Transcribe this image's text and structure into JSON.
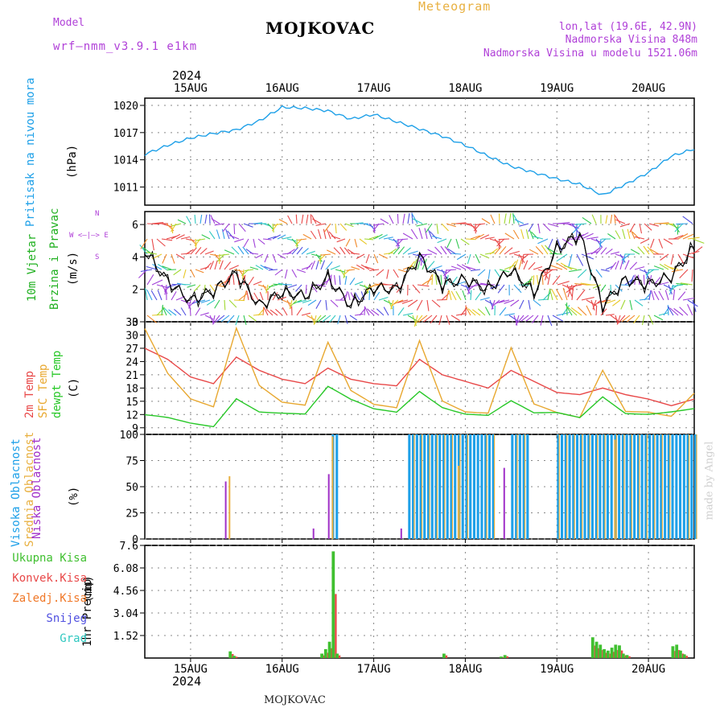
{
  "header": {
    "model_label": "Model",
    "model_name": "wrf—nmm_v3.9.1  e1km",
    "title": "MOJKOVAC",
    "subtitle": "Meteogram",
    "coords": "lon,lat (19.6E, 42.9N)",
    "altitude": "Nadmorska Visina 848m",
    "model_altitude": "Nadmorska Visina u modelu 1521.06m",
    "footer": "MOJKOVAC",
    "watermark": "made by Angel"
  },
  "colors": {
    "pressure": "#1ea0e8",
    "temp2m": "#e84848",
    "sfc": "#e8a830",
    "dewpt": "#28c828",
    "wind_label": "#20b020",
    "cloud_high": "#1ea0e8",
    "cloud_mid": "#e8b040",
    "cloud_low": "#a030c8",
    "precip_total": "#40c030",
    "precip_conv": "#e84848",
    "precip_frozen": "#f07828",
    "precip_snow": "#5050e0",
    "precip_grad": "#30c8c0",
    "model_text": "#b040d8"
  },
  "time_axis": {
    "year": "2024",
    "day_labels": [
      "15AUG",
      "16AUG",
      "17AUG",
      "18AUG",
      "19AUG",
      "20AUG"
    ],
    "start": "2024-08-14T12:00",
    "end": "2024-08-20T12:00"
  },
  "panels": {
    "pressure": {
      "label": "Pritisak na nivou mora",
      "unit": "(hPa)"
    },
    "wind": {
      "label1": "10m Vjetar",
      "label2": "Brzina i Pravac",
      "unit": "(m/s)",
      "compass": "W <—|—> E",
      "compass_n": "N",
      "compass_s": "S"
    },
    "temp": {
      "label1": "2m Temp",
      "label2": "SFC Temp",
      "label3": "dewpt Temp",
      "unit": "(C)"
    },
    "cloud": {
      "label1": "Visoka Oblacnost",
      "label2": "Srednja Oblacnost",
      "label3": "Niska Oblacnost",
      "unit": "(%)"
    },
    "precip": {
      "label": "1hr Precip",
      "unit": "(mm)",
      "legend": [
        "Ukupna Kisa",
        "Konvek.Kisa",
        "Zaledj.Kisa",
        "Snijeg",
        "Grad"
      ]
    }
  },
  "chart_data": [
    {
      "type": "line",
      "name": "pressure",
      "ylim": [
        1009.0,
        1020.8
      ],
      "yticks": [
        1011,
        1014,
        1017,
        1020
      ],
      "ylabel": "Pritisak na nivou mora (hPa)",
      "x": [
        "2024-08-14T12:00",
        "2024-08-14T18:00",
        "2024-08-15T00:00",
        "2024-08-15T06:00",
        "2024-08-15T12:00",
        "2024-08-15T18:00",
        "2024-08-16T00:00",
        "2024-08-16T06:00",
        "2024-08-16T12:00",
        "2024-08-16T18:00",
        "2024-08-17T00:00",
        "2024-08-17T06:00",
        "2024-08-17T12:00",
        "2024-08-17T18:00",
        "2024-08-18T00:00",
        "2024-08-18T06:00",
        "2024-08-18T12:00",
        "2024-08-18T18:00",
        "2024-08-19T00:00",
        "2024-08-19T06:00",
        "2024-08-19T12:00",
        "2024-08-19T18:00",
        "2024-08-20T00:00",
        "2024-08-20T06:00",
        "2024-08-20T12:00"
      ],
      "series": [
        {
          "values": [
            1014.6,
            1015.6,
            1016.4,
            1016.9,
            1017.3,
            1018.3,
            1019.8,
            1019.7,
            1019.4,
            1018.5,
            1019.0,
            1018.2,
            1017.4,
            1016.6,
            1015.6,
            1014.4,
            1013.3,
            1012.6,
            1011.9,
            1011.3,
            1010.1,
            1011.3,
            1012.6,
            1014.4,
            1015.2
          ]
        }
      ]
    },
    {
      "type": "line",
      "name": "wind",
      "ylim": [
        0,
        6.8
      ],
      "yticks": [
        0,
        2,
        4,
        6
      ],
      "ylabel": "10m Vjetar Brzina i Pravac (m/s)",
      "x": [
        "2024-08-14T12:00",
        "2024-08-14T18:00",
        "2024-08-15T00:00",
        "2024-08-15T06:00",
        "2024-08-15T12:00",
        "2024-08-15T18:00",
        "2024-08-16T00:00",
        "2024-08-16T06:00",
        "2024-08-16T12:00",
        "2024-08-16T18:00",
        "2024-08-17T00:00",
        "2024-08-17T06:00",
        "2024-08-17T12:00",
        "2024-08-17T18:00",
        "2024-08-18T00:00",
        "2024-08-18T06:00",
        "2024-08-18T12:00",
        "2024-08-18T18:00",
        "2024-08-19T00:00",
        "2024-08-19T06:00",
        "2024-08-19T12:00",
        "2024-08-19T18:00",
        "2024-08-20T00:00",
        "2024-08-20T06:00",
        "2024-08-20T12:00"
      ],
      "series": [
        {
          "values": [
            4.4,
            2.5,
            1.3,
            1.9,
            3.0,
            1.0,
            1.8,
            1.6,
            2.7,
            1.0,
            2.1,
            2.0,
            4.0,
            2.3,
            2.6,
            2.0,
            3.2,
            1.8,
            4.5,
            5.4,
            1.0,
            2.6,
            2.3,
            2.8,
            4.6
          ]
        }
      ]
    },
    {
      "type": "line",
      "name": "temperature",
      "ylim": [
        7.5,
        33
      ],
      "yticks": [
        9,
        12,
        15,
        18,
        21,
        24,
        27,
        30,
        33
      ],
      "ylabel": "(C)",
      "x": [
        "2024-08-14T12:00",
        "2024-08-14T18:00",
        "2024-08-15T00:00",
        "2024-08-15T06:00",
        "2024-08-15T12:00",
        "2024-08-15T18:00",
        "2024-08-16T00:00",
        "2024-08-16T06:00",
        "2024-08-16T12:00",
        "2024-08-16T18:00",
        "2024-08-17T00:00",
        "2024-08-17T06:00",
        "2024-08-17T12:00",
        "2024-08-17T18:00",
        "2024-08-18T00:00",
        "2024-08-18T06:00",
        "2024-08-18T12:00",
        "2024-08-18T18:00",
        "2024-08-19T00:00",
        "2024-08-19T06:00",
        "2024-08-19T12:00",
        "2024-08-19T18:00",
        "2024-08-20T00:00",
        "2024-08-20T06:00",
        "2024-08-20T12:00"
      ],
      "series": [
        {
          "name": "2m Temp",
          "values": [
            27.0,
            24.5,
            20.5,
            19.0,
            25.0,
            22.0,
            20.0,
            19.0,
            22.5,
            20.0,
            19.0,
            18.5,
            24.5,
            21.0,
            19.5,
            18.0,
            22.0,
            19.5,
            17.0,
            16.5,
            18.0,
            16.5,
            15.5,
            14.0,
            15.5
          ]
        },
        {
          "name": "SFC Temp",
          "values": [
            31.0,
            21.0,
            15.5,
            14.0,
            32.0,
            19.0,
            15.0,
            14.0,
            28.0,
            17.0,
            14.0,
            13.5,
            29.0,
            15.5,
            13.0,
            12.5,
            27.0,
            14.0,
            12.0,
            11.0,
            22.0,
            13.0,
            13.0,
            12.0,
            17.0
          ]
        },
        {
          "name": "dewpt Temp",
          "values": [
            11.5,
            11.0,
            10.0,
            9.5,
            16.0,
            13.0,
            12.5,
            12.0,
            18.0,
            15.0,
            13.0,
            12.5,
            17.5,
            14.0,
            12.5,
            12.0,
            15.0,
            12.0,
            12.0,
            11.0,
            16.0,
            12.5,
            12.5,
            13.0,
            13.5
          ]
        }
      ]
    },
    {
      "type": "bar",
      "name": "cloud_cover",
      "ylim": [
        0,
        100
      ],
      "yticks": [
        0,
        25,
        50,
        75,
        100
      ],
      "ylabel": "(%)",
      "periods_high_100": [
        [
          "2024-08-16T13:00",
          "2024-08-16T14:00"
        ],
        [
          "2024-08-17T09:00",
          "2024-08-18T07:00"
        ],
        [
          "2024-08-18T12:00",
          "2024-08-18T16:00"
        ],
        [
          "2024-08-19T00:00",
          "2024-08-20T12:00"
        ]
      ],
      "series": [
        {
          "name": "Niska Oblacnost",
          "spikes": [
            [
              "2024-08-15T09:00",
              55
            ],
            [
              "2024-08-16T08:00",
              10
            ],
            [
              "2024-08-16T12:00",
              62
            ],
            [
              "2024-08-17T07:00",
              10
            ],
            [
              "2024-08-18T10:00",
              68
            ]
          ]
        },
        {
          "name": "Srednja Oblacnost",
          "spikes": [
            [
              "2024-08-15T10:00",
              60
            ],
            [
              "2024-08-16T13:00",
              98
            ],
            [
              "2024-08-17T22:00",
              70
            ],
            [
              "2024-08-19T15:00",
              95
            ]
          ]
        }
      ]
    },
    {
      "type": "bar",
      "name": "precipitation",
      "ylim": [
        0,
        7.6
      ],
      "yticks": [
        1.52,
        3.04,
        4.56,
        6.08,
        7.6
      ],
      "ylabel": "1hr Precip (mm)",
      "x": [
        "2024-08-15T10:00",
        "2024-08-15T11:00",
        "2024-08-16T10:00",
        "2024-08-16T11:00",
        "2024-08-16T12:00",
        "2024-08-16T13:00",
        "2024-08-16T14:00",
        "2024-08-17T18:00",
        "2024-08-18T09:00",
        "2024-08-18T10:00",
        "2024-08-19T09:00",
        "2024-08-19T10:00",
        "2024-08-19T11:00",
        "2024-08-19T12:00",
        "2024-08-19T13:00",
        "2024-08-19T14:00",
        "2024-08-19T15:00",
        "2024-08-19T16:00",
        "2024-08-19T17:00",
        "2024-08-19T18:00",
        "2024-08-20T06:00",
        "2024-08-20T07:00",
        "2024-08-20T08:00",
        "2024-08-20T09:00"
      ],
      "series": [
        {
          "name": "Ukupna Kisa",
          "values": [
            0.45,
            0.15,
            0.3,
            0.6,
            1.1,
            7.2,
            0.3,
            0.3,
            0.1,
            0.2,
            1.4,
            1.1,
            0.9,
            0.6,
            0.5,
            0.7,
            0.9,
            0.85,
            0.3,
            0.2,
            0.8,
            0.9,
            0.5,
            0.25
          ]
        }
      ]
    }
  ]
}
